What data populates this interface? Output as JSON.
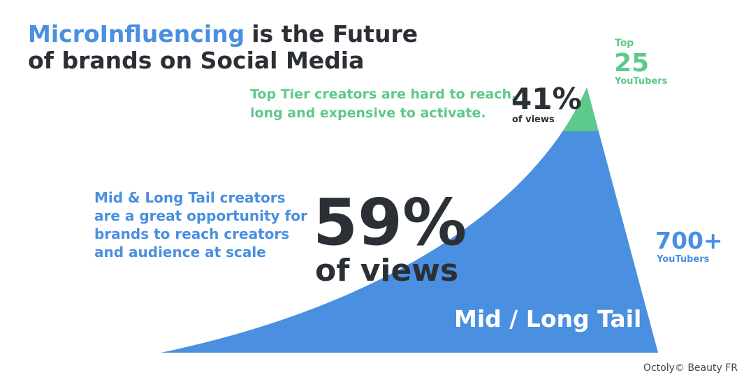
{
  "title": {
    "highlight": "MicroInfluencing",
    "line1_rest": "is the Future",
    "line2": "of brands on Social Media"
  },
  "top_tier": {
    "note_lines": [
      "Top Tier creators are hard to reach,",
      "long and expensive to activate."
    ],
    "share": "41%",
    "share_label": "of views",
    "count_prefix": "Top",
    "count": "25",
    "count_label": "YouTubers"
  },
  "mid_tail": {
    "note_lines": [
      "Mid & Long Tail creators",
      "are a great opportunity for",
      "brands to reach creators",
      "and audience at scale"
    ],
    "share": "59%",
    "share_label": "of views",
    "count": "700+",
    "count_label": "YouTubers",
    "segment_label": "Mid / Long Tail"
  },
  "footer": "Octoly© Beauty FR"
}
